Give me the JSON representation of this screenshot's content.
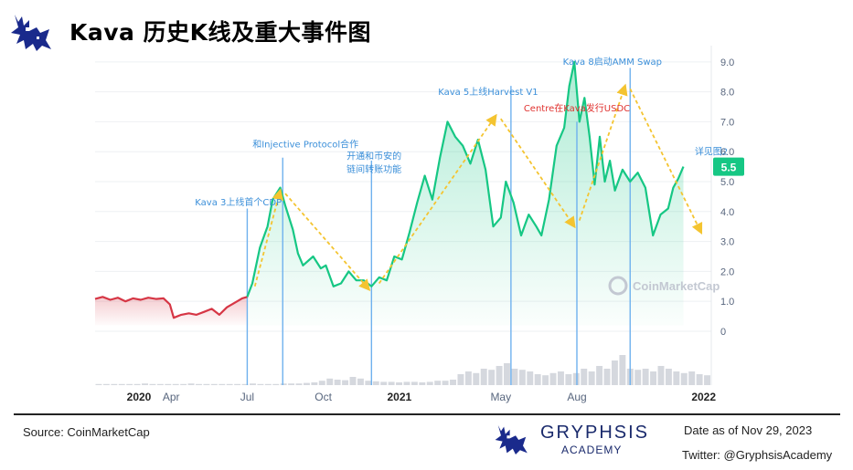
{
  "header": {
    "title": "Kava 历史K线及重大事件图",
    "logo_icon": "gryphon-icon"
  },
  "chart_data": {
    "type": "line",
    "title": "Kava 历史K线及重大事件图",
    "ylim": [
      -1.8,
      9.3
    ],
    "y_ticks": [
      0,
      1.0,
      2.0,
      3.0,
      4.0,
      5.0,
      6.0,
      7.0,
      8.0,
      9.0
    ],
    "y_tick_labels": [
      "0",
      "1.0",
      "2.0",
      "3.0",
      "4.0",
      "5.0",
      "6.0",
      "7.0",
      "8.0",
      "9.0"
    ],
    "x_ticks": [
      {
        "label": "2020",
        "t": 0.0,
        "bold": true
      },
      {
        "label": "Apr",
        "t": 3.0,
        "bold": false
      },
      {
        "label": "Jul",
        "t": 6.0,
        "bold": false
      },
      {
        "label": "Oct",
        "t": 9.0,
        "bold": false
      },
      {
        "label": "2021",
        "t": 12.0,
        "bold": true
      },
      {
        "label": "May",
        "t": 16.0,
        "bold": false
      },
      {
        "label": "Aug",
        "t": 19.0,
        "bold": false
      },
      {
        "label": "2022",
        "t": 24.0,
        "bold": true
      }
    ],
    "current_price": "5.5",
    "current_value": 5.5,
    "colors": {
      "up": "#16c784",
      "down": "#d63645",
      "event_line": "#6fb1ee",
      "arrow": "#f4c430",
      "annotation": "#3b8fd9",
      "annotation_highlight": "#e0322f",
      "badge": "#16c784"
    },
    "series": [
      {
        "color": "red",
        "points": [
          [
            0.0,
            1.08
          ],
          [
            0.3,
            1.15
          ],
          [
            0.6,
            1.05
          ],
          [
            0.9,
            1.12
          ],
          [
            1.2,
            1.0
          ],
          [
            1.5,
            1.1
          ],
          [
            1.8,
            1.05
          ],
          [
            2.1,
            1.12
          ],
          [
            2.4,
            1.08
          ],
          [
            2.7,
            1.1
          ],
          [
            2.95,
            0.9
          ],
          [
            3.1,
            0.45
          ],
          [
            3.4,
            0.55
          ],
          [
            3.7,
            0.6
          ],
          [
            4.0,
            0.55
          ],
          [
            4.3,
            0.65
          ],
          [
            4.6,
            0.75
          ],
          [
            4.9,
            0.55
          ],
          [
            5.2,
            0.8
          ],
          [
            5.5,
            0.95
          ],
          [
            5.8,
            1.1
          ],
          [
            6.0,
            1.15
          ]
        ]
      },
      {
        "color": "green",
        "points": [
          [
            6.0,
            1.15
          ],
          [
            6.2,
            1.6
          ],
          [
            6.5,
            2.8
          ],
          [
            6.8,
            3.5
          ],
          [
            7.0,
            4.4
          ],
          [
            7.3,
            4.8
          ],
          [
            7.5,
            4.2
          ],
          [
            7.8,
            3.4
          ],
          [
            8.0,
            2.6
          ],
          [
            8.2,
            2.2
          ],
          [
            8.6,
            2.5
          ],
          [
            8.9,
            2.1
          ],
          [
            9.1,
            2.2
          ],
          [
            9.4,
            1.5
          ],
          [
            9.7,
            1.6
          ],
          [
            10.0,
            2.0
          ],
          [
            10.3,
            1.7
          ],
          [
            10.6,
            1.7
          ],
          [
            10.9,
            1.5
          ],
          [
            11.2,
            1.8
          ],
          [
            11.5,
            1.7
          ],
          [
            11.8,
            2.5
          ],
          [
            12.1,
            2.4
          ],
          [
            12.4,
            3.3
          ],
          [
            12.7,
            4.3
          ],
          [
            13.0,
            5.2
          ],
          [
            13.3,
            4.4
          ],
          [
            13.6,
            5.8
          ],
          [
            13.9,
            7.0
          ],
          [
            14.2,
            6.5
          ],
          [
            14.5,
            6.2
          ],
          [
            14.8,
            5.6
          ],
          [
            15.1,
            6.4
          ],
          [
            15.4,
            5.4
          ],
          [
            15.7,
            3.5
          ],
          [
            16.0,
            3.8
          ],
          [
            16.2,
            5.0
          ],
          [
            16.5,
            4.3
          ],
          [
            16.8,
            3.2
          ],
          [
            17.1,
            3.9
          ],
          [
            17.4,
            3.5
          ],
          [
            17.6,
            3.2
          ],
          [
            17.9,
            4.4
          ],
          [
            18.2,
            6.2
          ],
          [
            18.5,
            6.8
          ],
          [
            18.7,
            8.2
          ],
          [
            18.9,
            9.0
          ],
          [
            19.1,
            7.0
          ],
          [
            19.3,
            7.8
          ],
          [
            19.5,
            6.5
          ],
          [
            19.7,
            4.9
          ],
          [
            19.9,
            6.5
          ],
          [
            20.1,
            5.0
          ],
          [
            20.3,
            5.7
          ],
          [
            20.5,
            4.7
          ],
          [
            20.8,
            5.4
          ],
          [
            21.1,
            5.0
          ],
          [
            21.4,
            5.3
          ],
          [
            21.7,
            4.8
          ],
          [
            22.0,
            3.2
          ],
          [
            22.3,
            3.9
          ],
          [
            22.6,
            4.1
          ],
          [
            22.8,
            4.8
          ],
          [
            23.0,
            5.1
          ],
          [
            23.2,
            5.5
          ]
        ]
      }
    ],
    "event_lines": [
      {
        "t": 6.0,
        "top": 4.1
      },
      {
        "t": 7.4,
        "top": 5.8
      },
      {
        "t": 10.9,
        "top": 5.7
      },
      {
        "t": 16.4,
        "top": 8.2
      },
      {
        "t": 19.0,
        "top": 7.0
      },
      {
        "t": 21.1,
        "top": 8.8
      }
    ],
    "trend_arrows": [
      {
        "from": [
          6.3,
          1.5
        ],
        "to": [
          7.3,
          4.7
        ]
      },
      {
        "from": [
          7.5,
          4.6
        ],
        "to": [
          10.8,
          1.4
        ]
      },
      {
        "from": [
          11.2,
          1.6
        ],
        "to": [
          15.8,
          7.2
        ]
      },
      {
        "from": [
          16.0,
          7.1
        ],
        "to": [
          18.9,
          3.5
        ]
      },
      {
        "from": [
          19.1,
          3.7
        ],
        "to": [
          20.9,
          8.2
        ]
      },
      {
        "from": [
          21.1,
          8.1
        ],
        "to": [
          23.9,
          3.3
        ]
      }
    ],
    "annotations": [
      {
        "text": "Kava 3上线首个CDP",
        "t": 5.65,
        "v": 4.2,
        "highlight": false
      },
      {
        "text": "和Injective Protocol合作",
        "t": 8.3,
        "v": 6.15,
        "highlight": false
      },
      {
        "text": "开通和币安的",
        "t": 11.0,
        "v": 5.75,
        "highlight": false
      },
      {
        "text": "链间转账功能",
        "t": 11.0,
        "v": 5.3,
        "highlight": false
      },
      {
        "text": "Kava 5上线Harvest V1",
        "t": 15.5,
        "v": 7.9,
        "highlight": false
      },
      {
        "text": "Centre在Kava发行USDC",
        "t": 19.0,
        "v": 7.35,
        "highlight": true
      },
      {
        "text": "Kava 8启动AMM Swap",
        "t": 20.4,
        "v": 8.9,
        "highlight": false
      },
      {
        "text": "详见图2",
        "t": 24.3,
        "v": 5.9,
        "highlight": false
      }
    ],
    "watermark": "CoinMarketCap",
    "volume": [
      0.02,
      0.02,
      0.02,
      0.02,
      0.02,
      0.02,
      0.03,
      0.02,
      0.02,
      0.02,
      0.02,
      0.02,
      0.03,
      0.02,
      0.02,
      0.02,
      0.02,
      0.02,
      0.02,
      0.02,
      0.03,
      0.02,
      0.02,
      0.02,
      0.03,
      0.03,
      0.03,
      0.04,
      0.05,
      0.08,
      0.12,
      0.1,
      0.09,
      0.15,
      0.12,
      0.08,
      0.07,
      0.06,
      0.06,
      0.05,
      0.06,
      0.06,
      0.05,
      0.06,
      0.08,
      0.08,
      0.1,
      0.2,
      0.25,
      0.22,
      0.3,
      0.28,
      0.35,
      0.4,
      0.3,
      0.28,
      0.25,
      0.2,
      0.18,
      0.22,
      0.25,
      0.2,
      0.22,
      0.3,
      0.25,
      0.35,
      0.3,
      0.45,
      0.55,
      0.3,
      0.28,
      0.3,
      0.25,
      0.35,
      0.3,
      0.25,
      0.22,
      0.25,
      0.2,
      0.18
    ]
  },
  "footer": {
    "source": "Source: CoinMarketCap",
    "brand_name": "GRYPHSIS",
    "brand_sub": "ACADEMY",
    "date": "Date as of Nov 29, 2023",
    "twitter": "Twitter: @GryphsisAcademy"
  }
}
